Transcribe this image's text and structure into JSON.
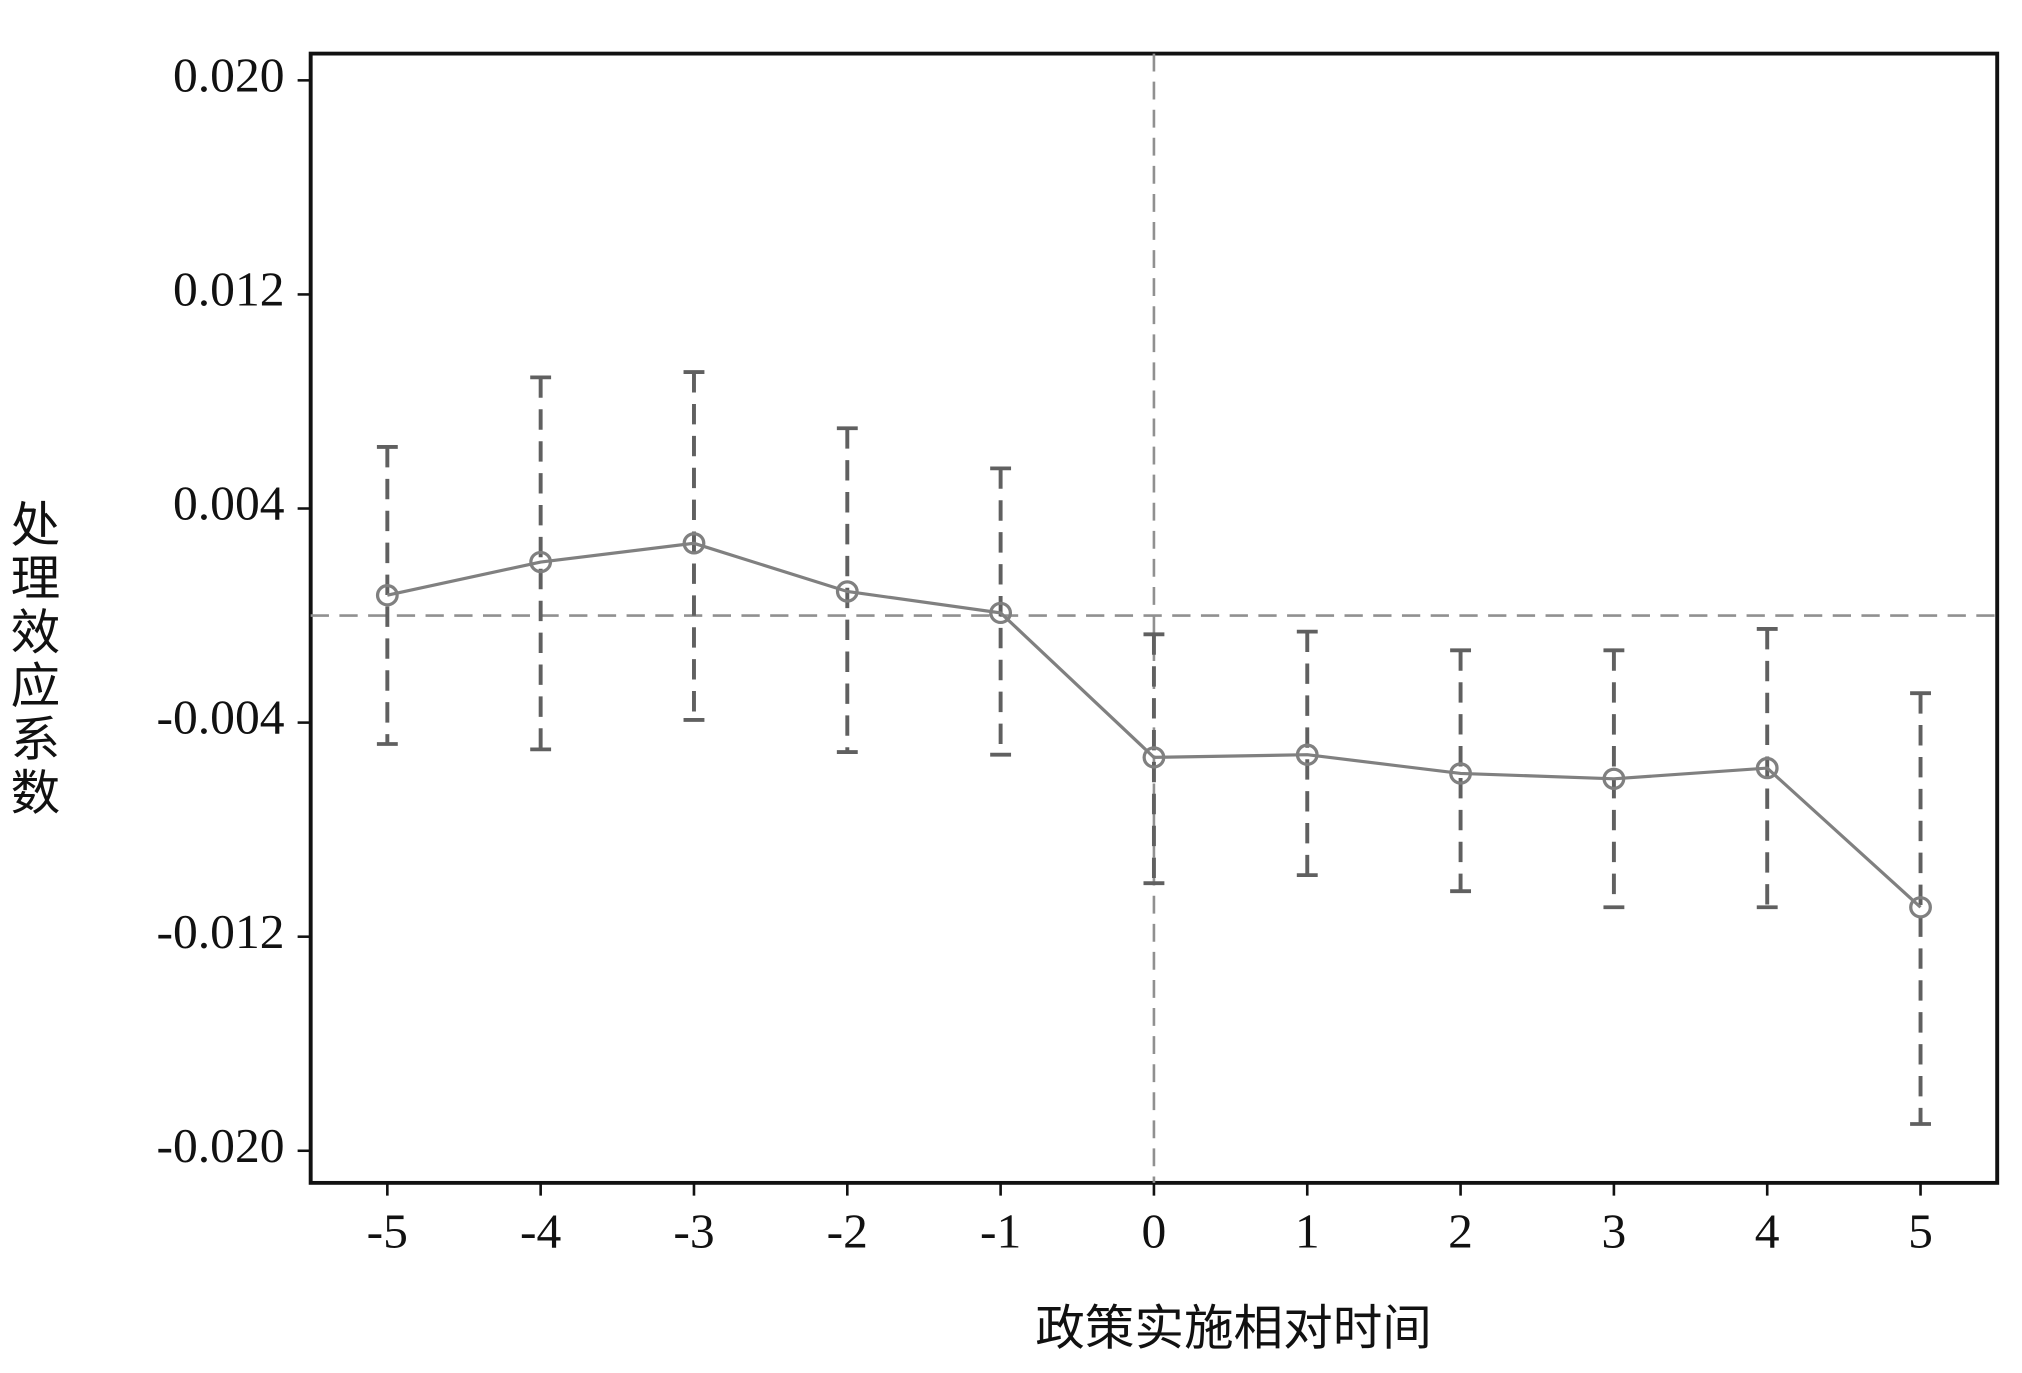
{
  "chart_data": {
    "type": "line",
    "x_label": "政策实施相对时间",
    "y_label": "处理效应系数",
    "x": [
      -5,
      -4,
      -3,
      -2,
      -1,
      0,
      1,
      2,
      3,
      4,
      5
    ],
    "series": [
      {
        "color": "#808080",
        "error_color": "#606060",
        "values": [
          0.00076,
          0.002,
          0.0027,
          0.0009,
          0.0001,
          -0.0053,
          -0.0052,
          -0.0059,
          -0.0061,
          -0.0057,
          -0.0109
        ],
        "ci_upper": [
          0.0063,
          0.0089,
          0.0091,
          0.007,
          0.0055,
          -0.0007,
          -0.0006,
          -0.0013,
          -0.0013,
          -0.0005,
          -0.0029
        ],
        "ci_lower": [
          -0.0048,
          -0.005,
          -0.0039,
          -0.0051,
          -0.0052,
          -0.01,
          -0.0097,
          -0.0103,
          -0.0109,
          -0.0109,
          -0.019
        ]
      }
    ],
    "xlim": [
      -5.5,
      5.5
    ],
    "ylim": [
      -0.0212,
      0.021
    ],
    "xticks": [
      -5,
      -4,
      -3,
      -2,
      -1,
      0,
      1,
      2,
      3,
      4,
      5
    ],
    "yticks": [
      {
        "value": 0.02,
        "label": "0.020"
      },
      {
        "value": 0.012,
        "label": "0.012"
      },
      {
        "value": 0.004,
        "label": "0.004"
      },
      {
        "value": -0.004,
        "label": "-0.004"
      },
      {
        "value": -0.012,
        "label": "-0.012"
      },
      {
        "value": -0.02,
        "label": "-0.020"
      }
    ],
    "reference_lines": {
      "x": 0,
      "y": 0,
      "color": "#909090"
    }
  }
}
